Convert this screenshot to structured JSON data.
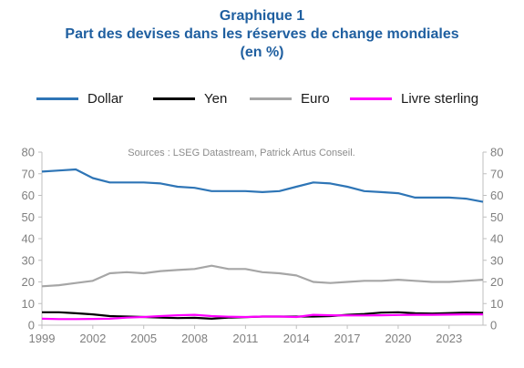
{
  "title": {
    "line1": "Graphique 1",
    "line2": "Part des devises dans les réserves de change mondiales",
    "line3": "(en %)"
  },
  "source_note": "Sources : LSEG Datastream, Patrick Artus Conseil.",
  "chart_data": {
    "type": "line",
    "title": "Part des devises dans les réserves de change mondiales",
    "subtitle": "(en %)",
    "xlabel": "",
    "ylabel": "",
    "legend_position": "top",
    "grid": false,
    "ylim": [
      0,
      80
    ],
    "yticks": [
      0,
      10,
      20,
      30,
      40,
      50,
      60,
      70,
      80
    ],
    "xlim": [
      1999,
      2025
    ],
    "xticks": [
      "1999",
      "2002",
      "2005",
      "2008",
      "2011",
      "2014",
      "2017",
      "2020",
      "2023"
    ],
    "x": [
      1999,
      2000,
      2001,
      2002,
      2003,
      2004,
      2005,
      2006,
      2007,
      2008,
      2009,
      2010,
      2011,
      2012,
      2013,
      2014,
      2015,
      2016,
      2017,
      2018,
      2019,
      2020,
      2021,
      2022,
      2023,
      2024,
      2025
    ],
    "series": [
      {
        "name": "Dollar",
        "color": "#2e75b6",
        "values": [
          71,
          71.5,
          72,
          68,
          66,
          66,
          66,
          65.5,
          64,
          63.5,
          62,
          62,
          62,
          61.5,
          62,
          64,
          66,
          65.5,
          64,
          62,
          61.5,
          61,
          59,
          59,
          59,
          58.5,
          57
        ]
      },
      {
        "name": "Yen",
        "color": "#000000",
        "values": [
          6,
          6,
          5.5,
          5,
          4.2,
          4,
          3.8,
          3.5,
          3.3,
          3.4,
          3,
          3.5,
          3.7,
          4,
          4,
          4,
          4,
          4.2,
          4.8,
          5.2,
          5.8,
          6,
          5.5,
          5.4,
          5.6,
          5.8,
          5.7
        ]
      },
      {
        "name": "Euro",
        "color": "#a6a6a6",
        "values": [
          18,
          18.5,
          19.5,
          20.5,
          24,
          24.5,
          24,
          25,
          25.5,
          26,
          27.5,
          26,
          26,
          24.5,
          24,
          23,
          20,
          19.5,
          20,
          20.5,
          20.5,
          21,
          20.5,
          20,
          20,
          20.5,
          21
        ]
      },
      {
        "name": "Livre sterling",
        "color": "#ff00ff",
        "values": [
          3,
          2.8,
          2.8,
          2.9,
          3,
          3.5,
          3.8,
          4.2,
          4.6,
          4.8,
          4.2,
          3.9,
          3.8,
          4,
          4,
          3.8,
          4.8,
          4.6,
          4.5,
          4.5,
          4.6,
          4.7,
          4.8,
          4.8,
          4.9,
          5,
          5
        ]
      }
    ]
  }
}
